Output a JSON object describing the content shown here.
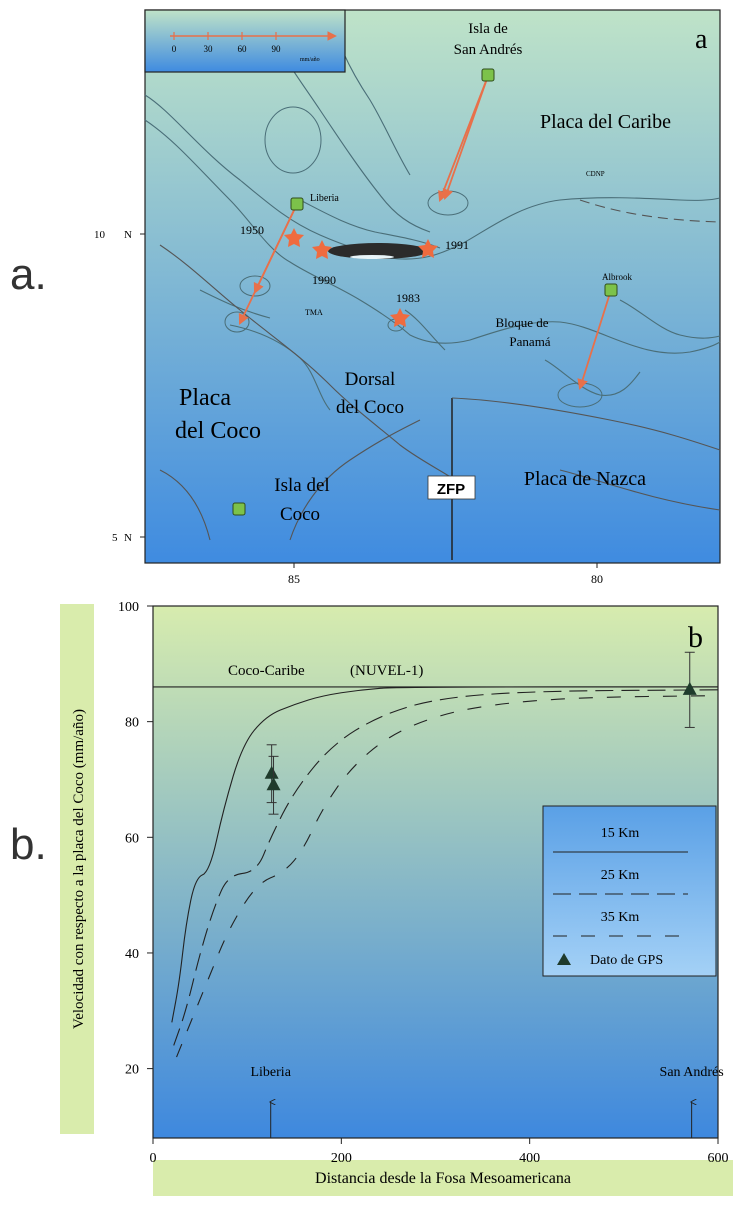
{
  "panel_labels": {
    "a": "a.",
    "b": "b."
  },
  "map": {
    "corner_letter": "a",
    "scale_ticks": [
      "0",
      "30",
      "60",
      "90"
    ],
    "scale_unit": "mm/año",
    "lat_labels": [
      "10",
      "5"
    ],
    "lat_suffix": "N",
    "lon_labels": [
      "85",
      "80"
    ],
    "labels": {
      "isla_san_andres_1": "Isla de",
      "isla_san_andres_2": "San Andrés",
      "placa_caribe": "Placa del Caribe",
      "cdnp": "CDNP",
      "liberia": "Liberia",
      "y1950": "1950",
      "y1990": "1990",
      "y1991": "1991",
      "y1983": "1983",
      "tma": "TMA",
      "albrook": "Albrook",
      "bloque_1": "Bloque de",
      "bloque_2": "Panamá",
      "placa_coco_1": "Placa",
      "placa_coco_2": "del Coco",
      "dorsal_1": "Dorsal",
      "dorsal_2": "del Coco",
      "placa_nazca": "Placa de Nazca",
      "isla_coco_1": "Isla del",
      "isla_coco_2": "Coco",
      "zfp": "ZFP"
    },
    "colors": {
      "top": "#bfe3c8",
      "bottom": "#3f8be0",
      "arrow": "#e8704a",
      "star": "#ef6b3f",
      "station": "#7cc24a"
    }
  },
  "chart_data": {
    "type": "line",
    "corner_letter": "b",
    "xlabel": "Distancia desde la Fosa Mesoamericana",
    "ylabel": "Velocidad con respecto a la placa del Coco (mm/año)",
    "xlim": [
      0,
      600
    ],
    "ylim": [
      8,
      100
    ],
    "xticks": [
      0,
      200,
      400,
      600
    ],
    "yticks": [
      20,
      40,
      60,
      80,
      100
    ],
    "reference_line": {
      "label": "Coco-Caribe",
      "model": "(NUVEL-1)",
      "y": 86
    },
    "series": [
      {
        "name": "15 Km",
        "style": "solid",
        "points": [
          [
            20,
            28
          ],
          [
            28,
            35
          ],
          [
            35,
            45
          ],
          [
            45,
            53
          ],
          [
            60,
            54
          ],
          [
            75,
            65
          ],
          [
            95,
            76
          ],
          [
            120,
            81
          ],
          [
            150,
            83
          ],
          [
            180,
            84.5
          ],
          [
            220,
            85.5
          ],
          [
            260,
            86
          ],
          [
            600,
            86
          ]
        ]
      },
      {
        "name": "25 Km",
        "style": "dash",
        "points": [
          [
            22,
            24
          ],
          [
            35,
            30
          ],
          [
            50,
            40
          ],
          [
            65,
            48
          ],
          [
            80,
            53.5
          ],
          [
            110,
            54
          ],
          [
            125,
            60
          ],
          [
            150,
            68
          ],
          [
            190,
            76
          ],
          [
            240,
            81
          ],
          [
            300,
            84
          ],
          [
            400,
            85.3
          ],
          [
            600,
            85.5
          ]
        ]
      },
      {
        "name": "35 Km",
        "style": "dash",
        "points": [
          [
            25,
            22
          ],
          [
            40,
            28
          ],
          [
            60,
            36
          ],
          [
            80,
            44
          ],
          [
            110,
            52
          ],
          [
            140,
            54
          ],
          [
            160,
            58
          ],
          [
            180,
            65
          ],
          [
            210,
            72
          ],
          [
            250,
            77.5
          ],
          [
            300,
            81
          ],
          [
            360,
            83
          ],
          [
            450,
            84.2
          ],
          [
            600,
            84.5
          ]
        ]
      }
    ],
    "gps_points": [
      {
        "x": 126,
        "y": 71,
        "err": 5
      },
      {
        "x": 128,
        "y": 69,
        "err": 5
      },
      {
        "x": 570,
        "y": 85.5,
        "err": 6.5
      }
    ],
    "gps_label": "Dato de GPS",
    "site_labels": [
      {
        "label": "Liberia",
        "x": 125
      },
      {
        "label": "San Andrés",
        "x": 572
      }
    ],
    "colors": {
      "top": "#d7ecae",
      "bottom": "#3e88de",
      "legend_top": "#5aa0e6",
      "legend_bottom": "#a4d1f6"
    }
  }
}
